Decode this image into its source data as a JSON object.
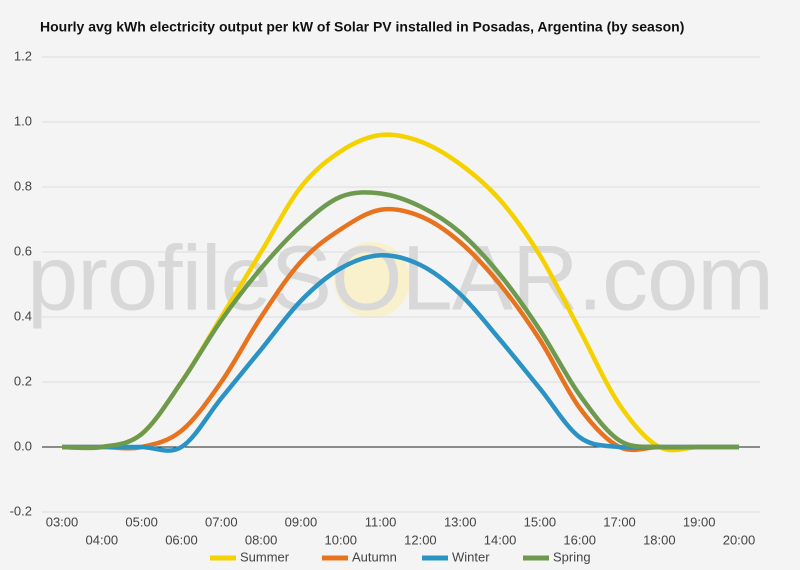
{
  "chart_data": {
    "type": "line",
    "title": "Hourly avg kWh electricity output per kW of Solar PV installed in Posadas, Argentina (by season)",
    "watermark": "profileSOLAR.com",
    "categories": [
      "03:00",
      "04:00",
      "05:00",
      "06:00",
      "07:00",
      "08:00",
      "09:00",
      "10:00",
      "11:00",
      "12:00",
      "13:00",
      "14:00",
      "15:00",
      "16:00",
      "17:00",
      "18:00",
      "19:00",
      "20:00"
    ],
    "series": [
      {
        "name": "Summer",
        "color": "#f5d100",
        "values": [
          0,
          0,
          0.04,
          0.2,
          0.4,
          0.6,
          0.8,
          0.91,
          0.96,
          0.94,
          0.87,
          0.76,
          0.59,
          0.36,
          0.13,
          0,
          0,
          0
        ]
      },
      {
        "name": "Autumn",
        "color": "#e8731f",
        "values": [
          0,
          0,
          0,
          0.05,
          0.2,
          0.4,
          0.57,
          0.67,
          0.73,
          0.71,
          0.63,
          0.5,
          0.33,
          0.12,
          0,
          0,
          0,
          0
        ]
      },
      {
        "name": "Winter",
        "color": "#2b93c4",
        "values": [
          0,
          0,
          0,
          0,
          0.15,
          0.3,
          0.45,
          0.55,
          0.59,
          0.56,
          0.47,
          0.33,
          0.18,
          0.03,
          0,
          0,
          0,
          0
        ]
      },
      {
        "name": "Spring",
        "color": "#6e9a4f",
        "values": [
          0,
          0,
          0.04,
          0.2,
          0.39,
          0.55,
          0.68,
          0.77,
          0.78,
          0.74,
          0.66,
          0.53,
          0.36,
          0.16,
          0.02,
          0,
          0,
          0
        ]
      }
    ],
    "ylim": [
      -0.2,
      1.2
    ],
    "yticks": [
      -0.2,
      {
        "value": 0,
        "label": "0.0"
      },
      0.2,
      0.4,
      0.6,
      0.8,
      {
        "value": 1,
        "label": "1.0"
      },
      1.2
    ],
    "grid": true,
    "legend": "bottom"
  }
}
